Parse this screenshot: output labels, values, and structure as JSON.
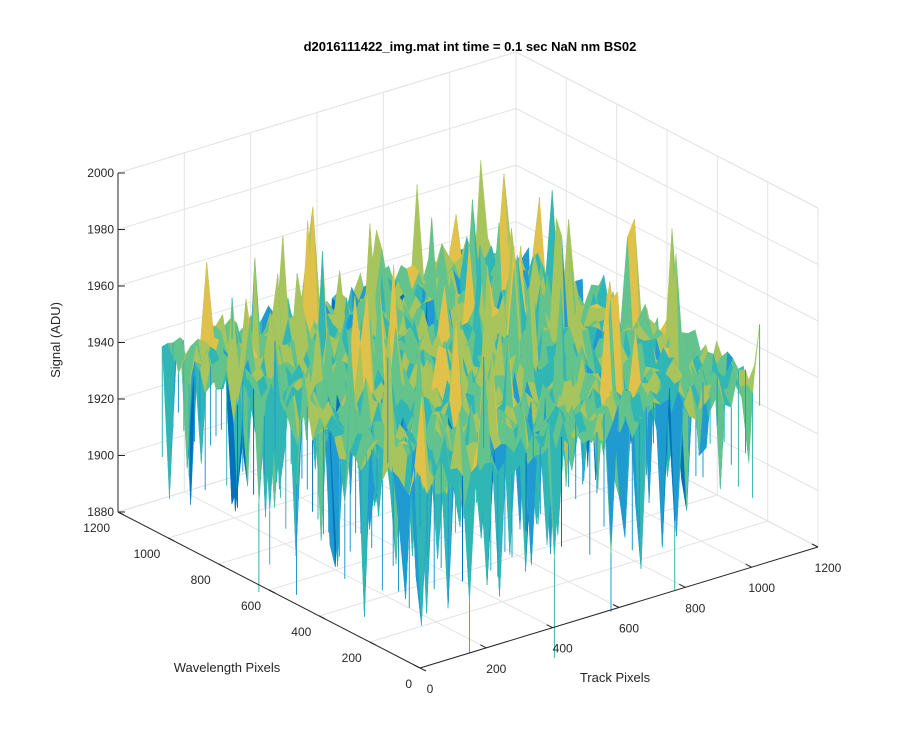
{
  "chart_data": {
    "type": "surface",
    "title": "d2016111422_img.mat int time = 0.1 sec  NaN nm BS02",
    "xlabel": "Track Pixels",
    "ylabel": "Wavelength Pixels",
    "zlabel": "Signal (ADU)",
    "xlim": [
      0,
      1200
    ],
    "ylim": [
      0,
      1200
    ],
    "zlim": [
      1880,
      2000
    ],
    "x_ticks": [
      "0",
      "200",
      "400",
      "600",
      "800",
      "1000",
      "1200"
    ],
    "y_ticks": [
      "0",
      "200",
      "400",
      "600",
      "800",
      "1000",
      "1200"
    ],
    "z_ticks": [
      "1880",
      "1900",
      "1920",
      "1940",
      "1960",
      "1980",
      "2000"
    ],
    "x_extent": [
      0,
      1024
    ],
    "y_extent": [
      0,
      1024
    ],
    "z_typical": 1945,
    "z_min_approx": 1883,
    "z_max_approx": 1985,
    "grid": true,
    "colormap": [
      "#0072bd",
      "#1f9bd1",
      "#31b6b6",
      "#63c38c",
      "#a8c45c",
      "#e0c24a"
    ]
  }
}
